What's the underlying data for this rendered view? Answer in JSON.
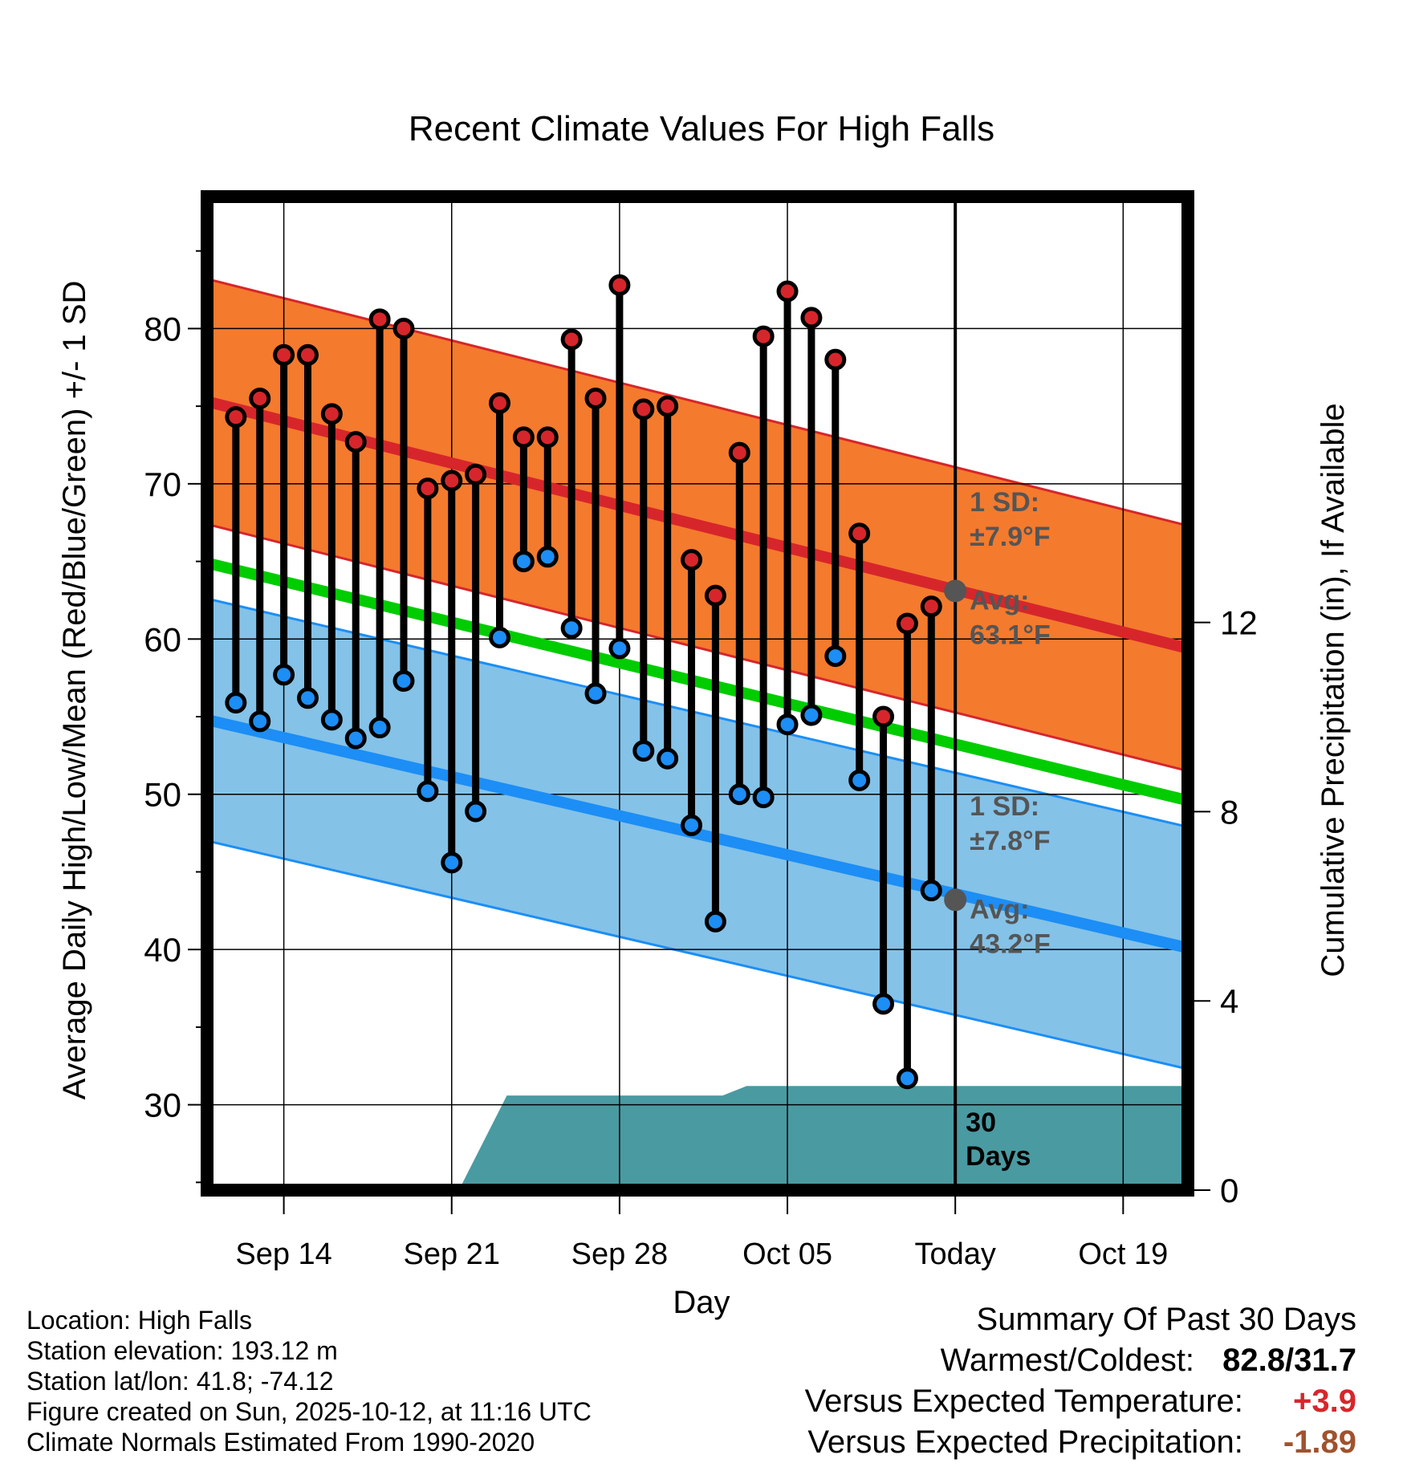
{
  "chart_data": {
    "type": "climate-range",
    "title": "Recent Climate Values For High Falls",
    "xlabel": "Day",
    "ylabel": "Average Daily High/Low/Mean (Red/Blue/Green) +/- 1 SD",
    "y2label": "Cumulative Precipitation (in), If Available",
    "ylim": [
      24.5,
      88.5
    ],
    "y2lim": [
      0,
      21.0
    ],
    "yticks": [
      30,
      40,
      50,
      60,
      70,
      80
    ],
    "y2ticks": [
      0,
      4,
      8,
      12
    ],
    "xlim": [
      -3.2,
      37.7
    ],
    "xticks": [
      {
        "day": 0,
        "label": "Sep 14"
      },
      {
        "day": 7,
        "label": "Sep 21"
      },
      {
        "day": 14,
        "label": "Sep 28"
      },
      {
        "day": 21,
        "label": "Oct 05"
      },
      {
        "day": 28,
        "label": "Today"
      },
      {
        "day": 35,
        "label": "Oct 19"
      }
    ],
    "days": [
      -2,
      -1,
      0,
      1,
      2,
      3,
      4,
      5,
      6,
      7,
      8,
      9,
      10,
      11,
      12,
      13,
      14,
      15,
      16,
      17,
      18,
      19,
      20,
      21,
      22,
      23,
      24,
      25,
      26,
      27
    ],
    "highs": [
      74.3,
      75.5,
      78.3,
      78.3,
      74.5,
      72.7,
      80.6,
      80.0,
      69.7,
      70.2,
      70.6,
      75.2,
      73.0,
      73.0,
      79.3,
      75.5,
      82.8,
      74.8,
      75.0,
      65.1,
      62.8,
      72.0,
      79.5,
      82.4,
      80.7,
      78.0,
      66.8,
      55.0,
      61.0,
      62.1
    ],
    "lows": [
      55.9,
      54.7,
      57.7,
      56.2,
      54.8,
      53.6,
      54.3,
      57.3,
      50.2,
      45.6,
      48.9,
      60.1,
      65.0,
      65.3,
      60.7,
      56.5,
      59.4,
      52.8,
      52.3,
      48.0,
      41.8,
      50.0,
      49.8,
      54.5,
      55.1,
      58.9,
      50.9,
      36.5,
      31.7,
      43.8
    ],
    "normal_high": {
      "start": 75.3,
      "end": 59.4,
      "sd": 7.9
    },
    "normal_mean": {
      "start": 64.9,
      "end": 49.6
    },
    "normal_low": {
      "start": 54.8,
      "end": 40.1,
      "sd": 7.8
    },
    "precip_steps": [
      [
        7.3,
        0
      ],
      [
        9.3,
        2.0
      ],
      [
        18.3,
        2.0
      ],
      [
        19.3,
        2.2
      ],
      [
        37.7,
        2.2
      ]
    ],
    "today_high": {
      "value": 63.1,
      "sd_label": "1 SD:",
      "sd_value": "±7.9°F",
      "avg_label": "Avg:",
      "avg_value": "63.1°F"
    },
    "today_low": {
      "value": 43.2,
      "sd_label": "1 SD:",
      "sd_value": "±7.8°F",
      "avg_label": "Avg:",
      "avg_value": "43.2°F"
    },
    "window_label": [
      "30",
      "Days"
    ],
    "colors": {
      "high_band": "#f47a2e",
      "high_line": "#d6262b",
      "mean_line": "#00cc00",
      "low_band": "#84c2e8",
      "low_line": "#1c8ef5",
      "precip": "#4a9aa2",
      "high_dot": "#d6262b",
      "low_dot": "#1c8ef5",
      "annotation": "#555555",
      "today_dot": "#555555"
    }
  },
  "info": {
    "location": "Location: High Falls",
    "elevation": "Station elevation: 193.12 m",
    "latlon": "Station lat/lon: 41.8; -74.12",
    "created": "Figure created on Sun, 2025-10-12, at 11:16 UTC",
    "normals": "Climate Normals Estimated From 1990-2020"
  },
  "summary": {
    "title": "Summary Of Past 30 Days",
    "warm_cold_label": "Warmest/Coldest:",
    "warm_cold_value": "82.8/31.7",
    "temp_label": "Versus Expected Temperature:",
    "temp_value": "+3.9",
    "temp_color": "#d6262b",
    "precip_label": "Versus Expected Precipitation:",
    "precip_value": "-1.89",
    "precip_color": "#a0522d"
  }
}
